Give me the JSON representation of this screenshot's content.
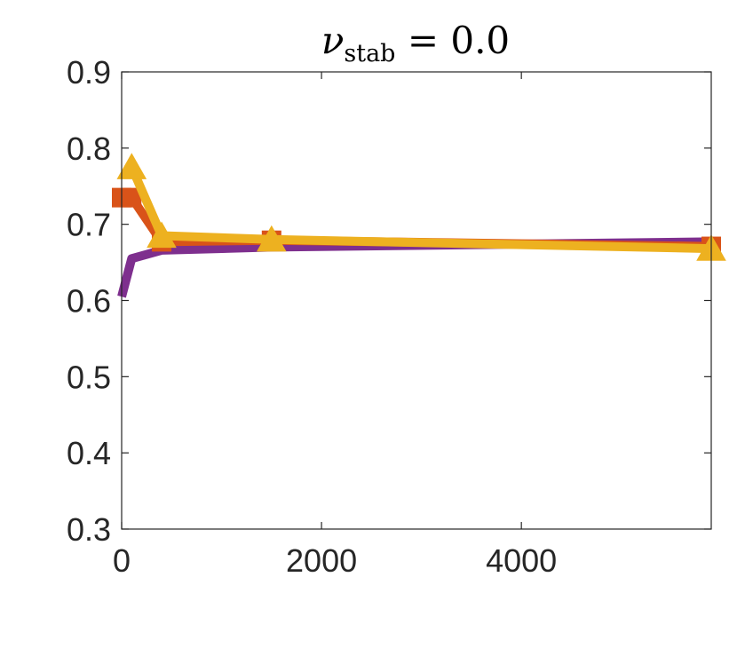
{
  "chart_data": {
    "type": "line",
    "title": {
      "symbol": "ν",
      "subscript": "stab",
      "rest": " = 0.0"
    },
    "xlabel": "",
    "ylabel": "",
    "xlim": [
      0,
      5900
    ],
    "ylim": [
      0.3,
      0.9
    ],
    "xticks": [
      0,
      2000,
      4000
    ],
    "yticks": [
      0.3,
      0.4,
      0.5,
      0.6,
      0.7,
      0.8,
      0.9
    ],
    "grid": false,
    "box": true,
    "series": [
      {
        "color": "#7E2F8E",
        "marker": "none",
        "x": [
          0,
          100,
          400,
          1500,
          5900
        ],
        "y": [
          0.605,
          0.655,
          0.666,
          0.67,
          0.677
        ]
      },
      {
        "color": "#D95319",
        "marker": "square",
        "x": [
          0,
          100,
          400,
          1500,
          5900
        ],
        "y": [
          0.735,
          0.735,
          0.677,
          0.679,
          0.671
        ]
      },
      {
        "color": "#EDB120",
        "marker": "triangle",
        "x": [
          100,
          400,
          1500,
          5900
        ],
        "y": [
          0.775,
          0.685,
          0.68,
          0.668
        ]
      }
    ]
  }
}
